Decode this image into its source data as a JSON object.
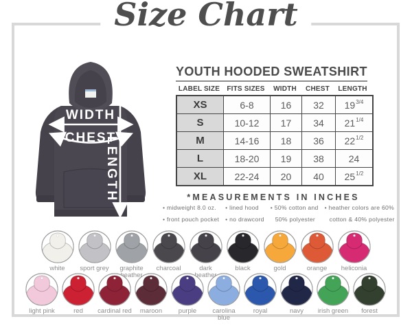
{
  "title": "Size Chart",
  "product": {
    "heading": "YOUTH HOODED SWEATSHIRT",
    "measurements_note": "*MEASUREMENTS IN INCHES"
  },
  "hoodie_diagram": {
    "width_label": "WIDTH",
    "chest_label": "CHEST",
    "length_label": "LENGTH",
    "body_color": "#4b4750",
    "arrow_color": "#ffffff"
  },
  "size_table": {
    "columns": [
      "LABEL SIZE",
      "FITS SIZES",
      "WIDTH",
      "CHEST",
      "LENGTH"
    ],
    "rows": [
      {
        "label_size": "XS",
        "fits_sizes": "6-8",
        "width": "16",
        "chest": "32",
        "length": "19",
        "length_fraction": "3/4"
      },
      {
        "label_size": "S",
        "fits_sizes": "10-12",
        "width": "17",
        "chest": "34",
        "length": "21",
        "length_fraction": "1/4"
      },
      {
        "label_size": "M",
        "fits_sizes": "14-16",
        "width": "18",
        "chest": "36",
        "length": "22",
        "length_fraction": "1/2"
      },
      {
        "label_size": "L",
        "fits_sizes": "18-20",
        "width": "19",
        "chest": "38",
        "length": "24",
        "length_fraction": ""
      },
      {
        "label_size": "XL",
        "fits_sizes": "22-24",
        "width": "20",
        "chest": "40",
        "length": "25",
        "length_fraction": "1/2"
      }
    ]
  },
  "features": [
    {
      "lines": [
        {
          "text": "midweight 8.0 oz.",
          "bullet": true
        },
        {
          "text": "front pouch pocket",
          "bullet": true
        }
      ]
    },
    {
      "lines": [
        {
          "text": "lined hood",
          "bullet": true
        },
        {
          "text": "no drawcord",
          "bullet": true
        }
      ]
    },
    {
      "lines": [
        {
          "text": "50% cotton and",
          "bullet": true
        },
        {
          "text": "50% polyester",
          "bullet": false
        }
      ]
    },
    {
      "lines": [
        {
          "text": "heather colors are 60%",
          "bullet": true
        },
        {
          "text": "cotton & 40% polyester",
          "bullet": false
        }
      ]
    }
  ],
  "color_swatches": {
    "row1": [
      {
        "name": "white",
        "hex": "#f2f0eb"
      },
      {
        "name": "sport grey",
        "hex": "#c2c2c6"
      },
      {
        "name": "graphite\nheather",
        "hex": "#9fa2a6"
      },
      {
        "name": "charcoal",
        "hex": "#4a484d"
      },
      {
        "name": "dark\nheather",
        "hex": "#454349"
      },
      {
        "name": "black",
        "hex": "#28282c"
      },
      {
        "name": "gold",
        "hex": "#f7a83b"
      },
      {
        "name": "orange",
        "hex": "#de5a37"
      },
      {
        "name": "heliconia",
        "hex": "#d62a72"
      }
    ],
    "row2": [
      {
        "name": "light pink",
        "hex": "#f2c8db"
      },
      {
        "name": "red",
        "hex": "#cc2133"
      },
      {
        "name": "cardinal red",
        "hex": "#8e2338"
      },
      {
        "name": "maroon",
        "hex": "#5d2c39"
      },
      {
        "name": "purple",
        "hex": "#4b3d82"
      },
      {
        "name": "carolina blue",
        "hex": "#8cade0"
      },
      {
        "name": "royal",
        "hex": "#2b58ac"
      },
      {
        "name": "navy",
        "hex": "#202747"
      },
      {
        "name": "irish green",
        "hex": "#43a357"
      },
      {
        "name": "forest",
        "hex": "#333f2f"
      }
    ]
  }
}
